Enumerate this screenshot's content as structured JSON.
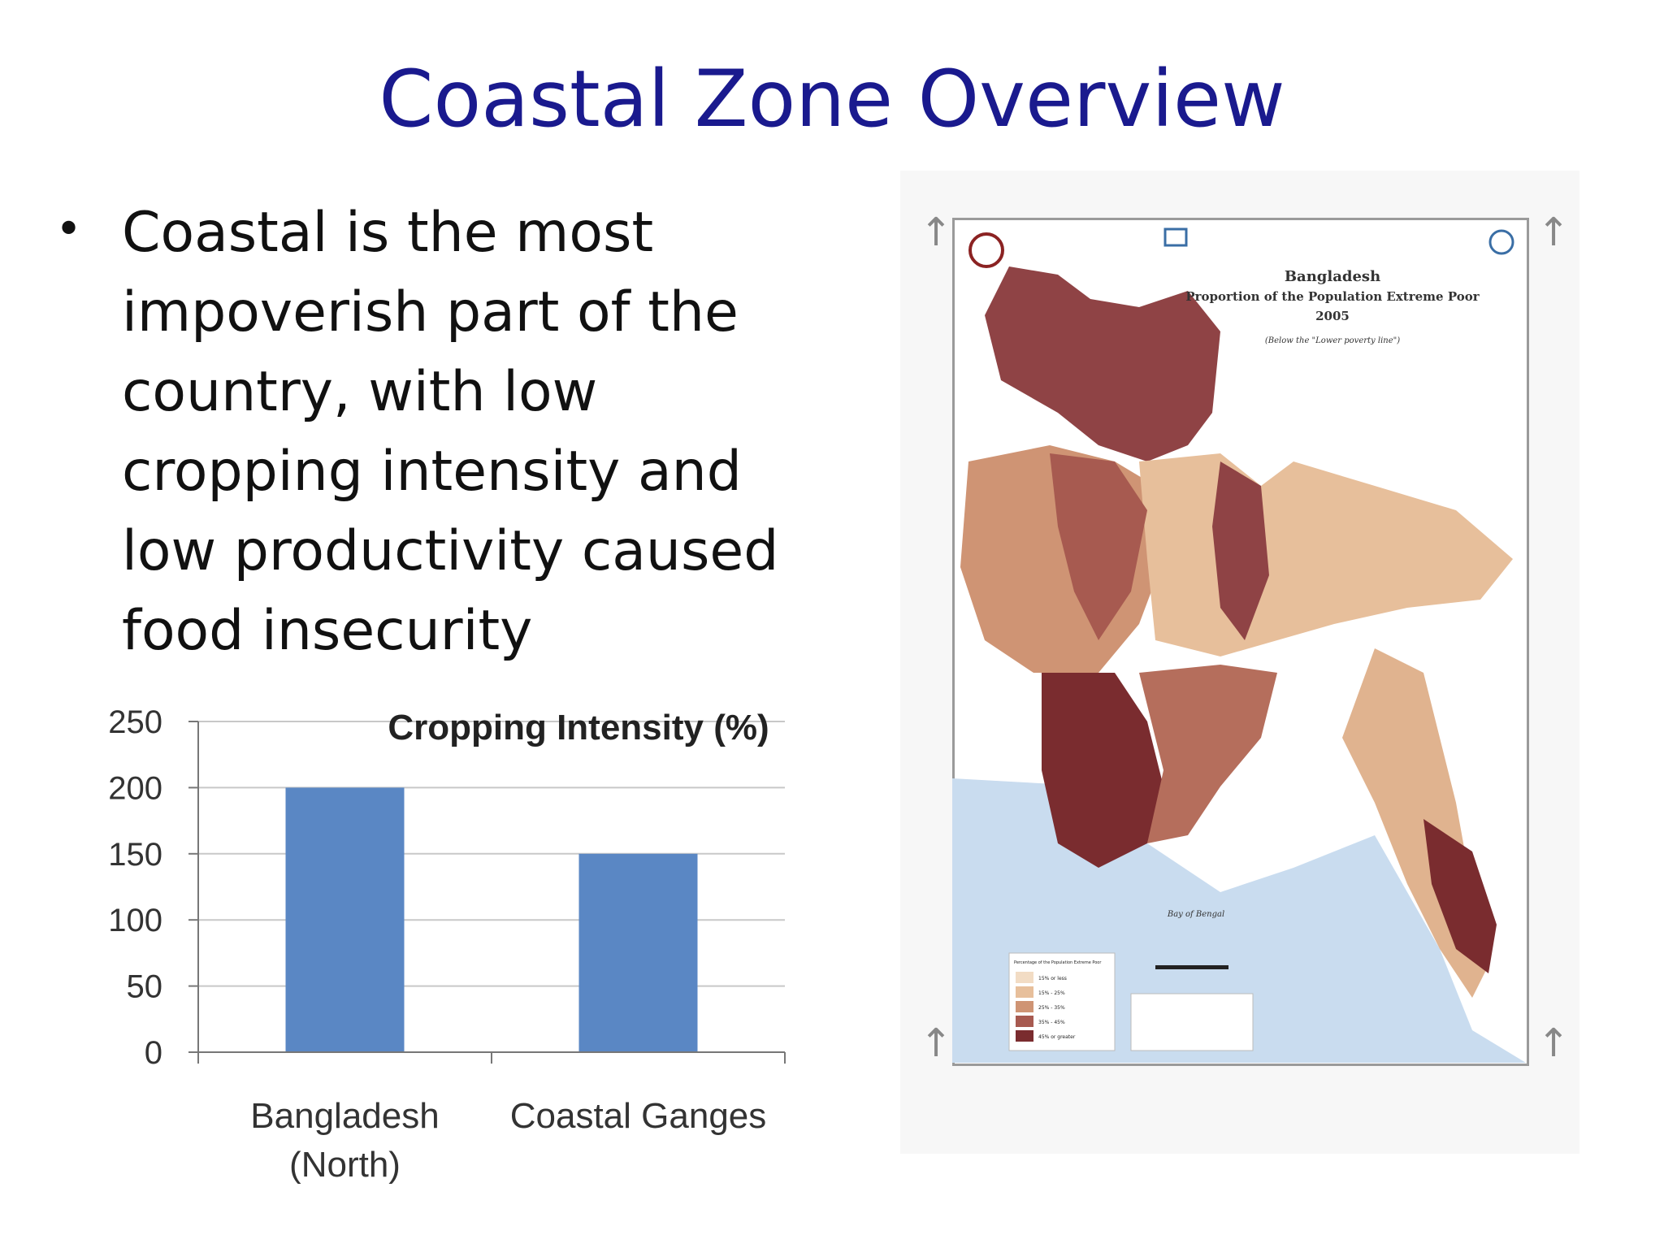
{
  "slide": {
    "title": "Coastal Zone Overview",
    "bullet_symbol": "•",
    "bullet_text": "Coastal is the most impoverish part of the country, with low cropping intensity and low productivity caused food insecurity"
  },
  "chart_data": {
    "type": "bar",
    "title": "Cropping Intensity (%)",
    "categories": [
      "Bangladesh (North)",
      "Coastal Ganges"
    ],
    "values": [
      200,
      150
    ],
    "ylim": [
      0,
      250
    ],
    "yticks": [
      "0",
      "50",
      "100",
      "150",
      "200",
      "250"
    ],
    "grid": true,
    "bar_color": "#5a87c4"
  },
  "map": {
    "title_line1": "Bangladesh",
    "title_line2": "Proportion of the Population Extreme Poor",
    "title_line3": "2005",
    "subtitle": "(Below the \"Lower poverty line\")",
    "sea_label": "Bay of Bengal",
    "legend_title": "Percentage of the Population Extreme Poor",
    "legend_items": [
      "15% or less",
      "15% - 25%",
      "25% - 35%",
      "35% - 45%",
      "45% or greater"
    ],
    "legend_colors": [
      "#f2dcc4",
      "#e7bf9b",
      "#cf9474",
      "#a75a50",
      "#7a2c2f"
    ]
  }
}
